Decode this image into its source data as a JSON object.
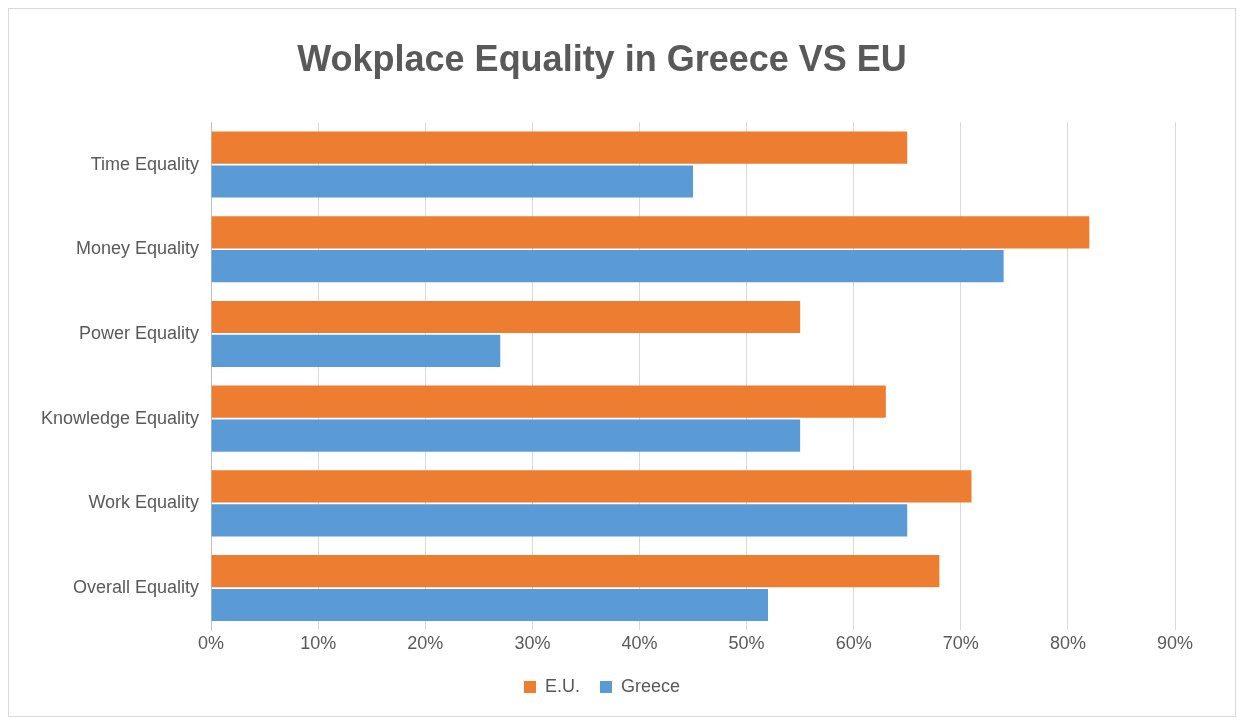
{
  "chart_data": {
    "type": "bar",
    "orientation": "horizontal",
    "title": "Wokplace Equality in Greece VS EU",
    "categories": [
      "Time Equality",
      "Money Equality",
      "Power Equality",
      "Knowledge Equality",
      "Work Equality",
      "Overall Equality"
    ],
    "series": [
      {
        "name": "E.U.",
        "color": "#ed7d31",
        "values": [
          65,
          82,
          55,
          63,
          71,
          68
        ]
      },
      {
        "name": "Greece",
        "color": "#5b9bd5",
        "values": [
          45,
          74,
          27,
          55,
          65,
          52
        ]
      }
    ],
    "xlim": [
      0,
      90
    ],
    "xticks": [
      {
        "value": 0,
        "label": "0%"
      },
      {
        "value": 10,
        "label": "10%"
      },
      {
        "value": 20,
        "label": "20%"
      },
      {
        "value": 30,
        "label": "30%"
      },
      {
        "value": 40,
        "label": "40%"
      },
      {
        "value": 50,
        "label": "50%"
      },
      {
        "value": 60,
        "label": "60%"
      },
      {
        "value": 70,
        "label": "70%"
      },
      {
        "value": 80,
        "label": "80%"
      },
      {
        "value": 90,
        "label": "90%"
      }
    ],
    "grid": "x",
    "legend": "bottom"
  }
}
